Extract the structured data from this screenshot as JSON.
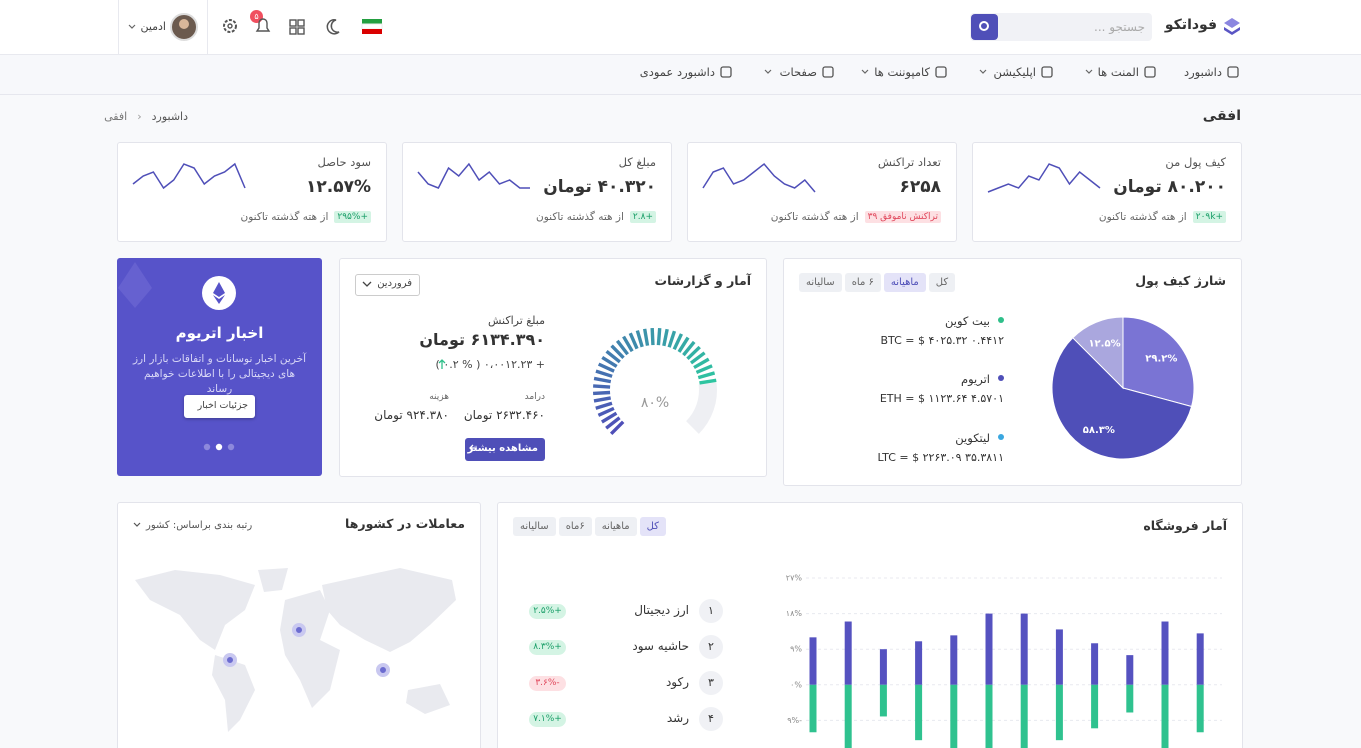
{
  "header": {
    "brand": "فوداتکو",
    "search_placeholder": "جستجو ...",
    "notifications": "۵",
    "user": "ادمین"
  },
  "nav": [
    "داشبورد",
    "المنت ها",
    "اپلیکیشن",
    "کامپوننت ها",
    "صفحات",
    "داشبورد عمودی"
  ],
  "page": {
    "title": "افقی",
    "breadcrumb": [
      "داشبورد",
      "افقی"
    ]
  },
  "stat_cards": [
    {
      "title": "کیف پول من",
      "value": "۸۰.۲۰۰ تومان",
      "badge": "۲۰۹k+",
      "badge_bg": "#d4f4e4",
      "badge_color": "#1a9e68",
      "note": "از هته گذشته تاکنون",
      "sparkline": [
        2,
        3,
        4,
        3,
        6,
        5,
        9,
        8,
        4,
        7,
        5,
        3
      ]
    },
    {
      "title": "تعداد تراکنش",
      "value": "۶۲۵۸",
      "badge": "۳۹ تراکنش ناموفق",
      "badge_bg": "#fde0e3",
      "badge_color": "#e0475b",
      "note": "از هته گذشته تاکنون",
      "sparkline": [
        3,
        7,
        8,
        4,
        5,
        7,
        9,
        6,
        4,
        3,
        5,
        2
      ]
    },
    {
      "title": "مبلغ کل",
      "value": "۴۰.۳۲۰ تومان",
      "badge": "۲.۸+",
      "badge_bg": "#d4f4e4",
      "badge_color": "#1a9e68",
      "note": "از هته گذشته تاکنون",
      "sparkline": [
        7,
        4,
        3,
        8,
        6,
        9,
        5,
        7,
        4,
        5,
        3,
        3
      ]
    },
    {
      "title": "سود حاصل",
      "value": "۱۲.۵۷%",
      "badge": "۲۹۵%+",
      "badge_bg": "#d4f4e4",
      "badge_color": "#1a9e68",
      "note": "از هته گذشته تاکنون",
      "sparkline": [
        4,
        6,
        7,
        3,
        5,
        9,
        8,
        4,
        6,
        7,
        9,
        3
      ]
    }
  ],
  "wallet": {
    "title": "شارژ کیف پول",
    "tabs": [
      "کل",
      "ماهیانه",
      "۶ ماه",
      "سالیانه"
    ],
    "active_tab": 1,
    "coins": [
      {
        "name": "بیت کوین",
        "rate": "BTC = $ ۴۰۲۵.۳۲ ۰.۴۴۱۲",
        "color": "#2fbf8a"
      },
      {
        "name": "اتریوم",
        "rate": "ETH = $ ۱۱۲۳.۶۴ ۴.۵۷۰۱",
        "color": "#4f4fb8"
      },
      {
        "name": "لیتکوین",
        "rate": "LTC = $ ۲۲۶۳.۰۹ ۳۵.۳۸۱۱",
        "color": "#3aa7e0"
      }
    ]
  },
  "reports": {
    "title": "آمار و گزارشات",
    "month": "فروردین",
    "amount_label": "مبلغ تراکنش",
    "amount": "۶۱۳۴.۳۹۰ تومان",
    "change": "( ۰.۲ % ) ۰،۰۰۱۲.۲۳ +",
    "income_label": "درامد",
    "income": "۲۶۳۲.۴۶۰ تومان",
    "expense_label": "هزینه",
    "expense": "۹۲۴.۳۸۰ تومان",
    "button": "مشاهده بیشتر",
    "gauge_value": 80,
    "gauge_label": "۸۰%"
  },
  "news": {
    "title": "اخبار اتریوم",
    "text": "آخرین اخبار نوسانات و اتفاقات بازار ارز های دیجیتالی را با اطلاعات خواهیم رساند",
    "button": "جزئیات اخبار"
  },
  "countries": {
    "title": "معاملات در کشورها",
    "sort": "رتبه بندی براساس: کشور"
  },
  "store": {
    "title": "آمار فروشگاه",
    "tabs": [
      "کل",
      "ماهیانه",
      "۶ماه",
      "سالیانه"
    ],
    "active_tab": 0,
    "items": [
      {
        "rank": "۱",
        "name": "ارز دیجیتال",
        "change": "۲.۵%+",
        "color": "#1a9e68",
        "bg": "#d4f4e4"
      },
      {
        "rank": "۲",
        "name": "حاشیه سود",
        "change": "۸.۳%+",
        "color": "#1a9e68",
        "bg": "#d4f4e4"
      },
      {
        "rank": "۳",
        "name": "رکود",
        "change": "۳.۶%-",
        "color": "#e0475b",
        "bg": "#fde0e3"
      },
      {
        "rank": "۴",
        "name": "رشد",
        "change": "۷.۱%+",
        "color": "#1a9e68",
        "bg": "#d4f4e4"
      }
    ]
  },
  "chart_data": [
    {
      "type": "pie",
      "values": [
        29.2,
        58.3,
        12.5
      ],
      "value_labels": [
        "۲۹.۲%",
        "۵۸.۳%",
        "۱۲.۵%"
      ],
      "colors": [
        "#7a74d4",
        "#4f4fb8",
        "#aaa7de"
      ]
    },
    {
      "type": "bar",
      "categories": [
        null,
        null,
        null,
        null,
        null,
        null,
        null,
        null,
        null,
        null,
        null,
        null
      ],
      "series": [
        {
          "color": "#5552c0",
          "values": [
            12,
            16,
            9,
            11,
            12.5,
            18,
            18,
            14,
            10.5,
            7.5,
            16,
            13
          ]
        },
        {
          "color": "#2fc28f",
          "values": [
            -12,
            -16,
            -8,
            -14,
            -16,
            -16,
            -16,
            -14,
            -11,
            -7,
            -16,
            -12
          ]
        }
      ],
      "ylim": [
        -18,
        27
      ],
      "yticks": [
        {
          "value": 27,
          "label": "۲۷%"
        },
        {
          "value": 18,
          "label": "۱۸%"
        },
        {
          "value": 9,
          "label": "۹%"
        },
        {
          "value": 0,
          "label": "۰%"
        },
        {
          "value": -9,
          "label": "۹%-"
        }
      ],
      "grid": true
    }
  ]
}
